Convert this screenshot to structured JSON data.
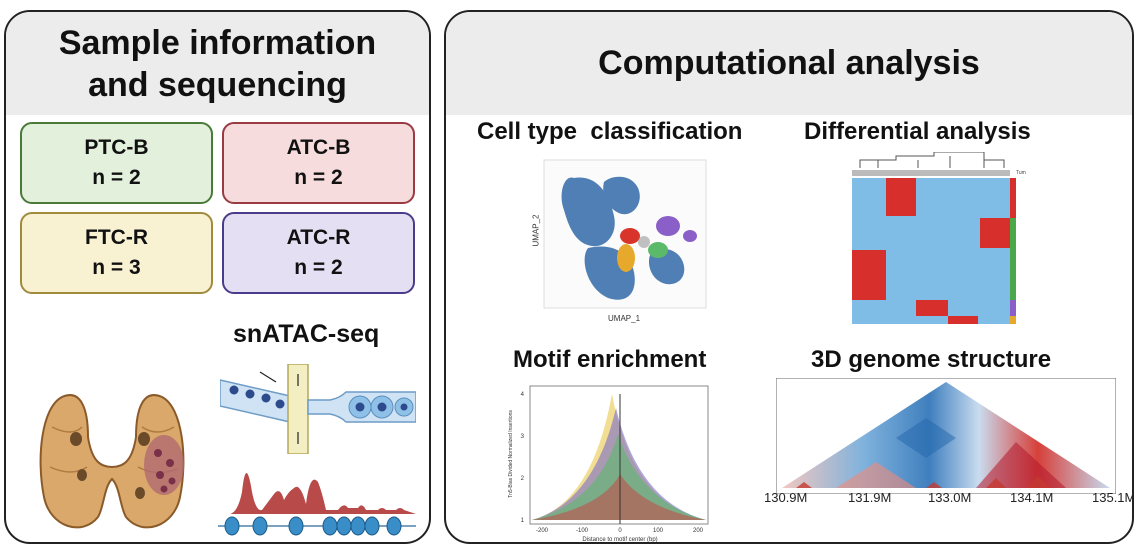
{
  "left_panel": {
    "title_line1": "Sample information",
    "title_line2": "and sequencing",
    "groups": [
      {
        "name": "PTC-B",
        "n": "n = 2",
        "fill": "#e3f1dc",
        "border": "#4a7a3a"
      },
      {
        "name": "ATC-B",
        "n": "n = 2",
        "fill": "#f6dcdc",
        "border": "#9a3b44"
      },
      {
        "name": "FTC-R",
        "n": "n = 3",
        "fill": "#f8f2d2",
        "border": "#a08a3c"
      },
      {
        "name": "ATC-R",
        "n": "n = 2",
        "fill": "#e4dff2",
        "border": "#4a3c8a"
      }
    ],
    "method_label": "snATAC-seq",
    "icons": [
      "thyroid-gland-illustration",
      "microfluidic-droplet-illustration",
      "chromatin-peak-illustration"
    ]
  },
  "right_panel": {
    "title": "Computational analysis",
    "sections": {
      "cell_type": "Cell type  classification",
      "differential": "Differential analysis",
      "motif": "Motif enrichment",
      "genome": "3D genome structure"
    },
    "umap": {
      "xlabel": "UMAP_1",
      "ylabel": "UMAP_2"
    },
    "motif_plot": {
      "xlabel": "Distance to motif center (bp)",
      "ylabel": "Tn5-Bias Divided Normalized Insertions",
      "x_ticks": [
        "-200",
        "-100",
        "0",
        "100",
        "200"
      ],
      "y_ticks": [
        "1",
        "2",
        "3",
        "4"
      ]
    },
    "genome_axis": {
      "ticks": [
        "130.9M",
        "131.9M",
        "133.0M",
        "134.1M",
        "135.1M"
      ]
    }
  },
  "colors": {
    "panel_border": "#222222",
    "header_bg": "#ececec",
    "heatmap_red": "#d7302c",
    "heatmap_blue": "#7fbde6"
  }
}
